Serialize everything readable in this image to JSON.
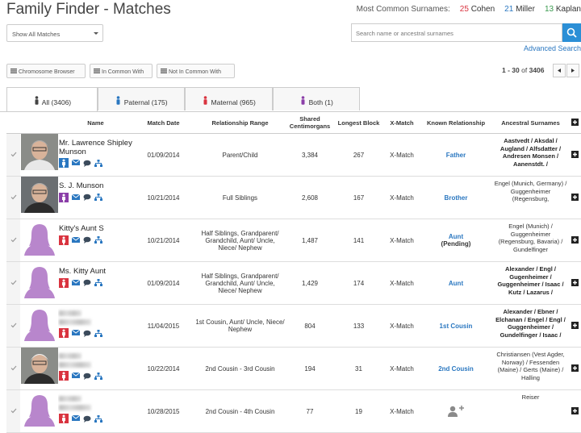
{
  "header": {
    "title": "Family Finder - Matches",
    "surnames_label": "Most Common Surnames:",
    "surnames": [
      {
        "count": "25",
        "name": "Cohen",
        "color": "#d9333f"
      },
      {
        "count": "21",
        "name": "Miller",
        "color": "#2a77c0"
      },
      {
        "count": "13",
        "name": "Kaplan",
        "color": "#3a9a4e"
      }
    ]
  },
  "filters": {
    "show_select": "Show All Matches",
    "search_placeholder": "Search name or ancestral surnames",
    "advanced_search": "Advanced Search"
  },
  "toolbar": {
    "buttons": [
      "Chromosome Browser",
      "In Common With",
      "Not In Common With"
    ],
    "range": "1 - 30",
    "of": "of",
    "total": "3406"
  },
  "tabs": [
    {
      "label": "All (3406)",
      "color": "#444444"
    },
    {
      "label": "Paternal (175)",
      "color": "#2a77c0"
    },
    {
      "label": "Maternal (965)",
      "color": "#d9333f"
    },
    {
      "label": "Both (1)",
      "color": "#8b3fa8"
    }
  ],
  "table": {
    "columns": [
      "Name",
      "Match Date",
      "Relationship Range",
      "Shared Centimorgans",
      "Longest Block",
      "X-Match",
      "Known Relationship",
      "Ancestral Surnames"
    ],
    "rows": [
      {
        "name": "Mr. Lawrence Shipley Munson",
        "avatar": "photo",
        "gender": "male",
        "date": "01/09/2014",
        "range": "Parent/Child",
        "shared": "3,384",
        "longest": "267",
        "xmatch": "X-Match",
        "known": "Father",
        "surnames": "Aastvedt / Aksdal / Augland / Alfsdatter / Andresen Monsen / Aanenstdt. /",
        "bold_surnames": true
      },
      {
        "name": "S. J. Munson",
        "avatar": "photo",
        "gender": "both",
        "date": "10/21/2014",
        "range": "Full Siblings",
        "shared": "2,608",
        "longest": "167",
        "xmatch": "X-Match",
        "known": "Brother",
        "surnames": "Engel (Munich, Germany) / Guggenheimer (Regensburg,",
        "bold_surnames": false
      },
      {
        "name": "Kitty's Aunt S",
        "avatar": "silhouette",
        "gender": "female",
        "date": "10/21/2014",
        "range": "Half Siblings, Grandparent/ Grandchild, Aunt/ Uncle, Niece/ Nephew",
        "shared": "1,487",
        "longest": "141",
        "xmatch": "X-Match",
        "known": "Aunt",
        "known_note": "(Pending)",
        "surnames": "Engel (Munich) / Guggenheimer (Regensburg, Bavaria) / Gundelfinger",
        "bold_surnames": false
      },
      {
        "name": "Ms. Kitty Aunt",
        "avatar": "silhouette",
        "gender": "female",
        "date": "01/09/2014",
        "range": "Half Siblings, Grandparent/ Grandchild, Aunt/ Uncle, Niece/ Nephew",
        "shared": "1,429",
        "longest": "174",
        "xmatch": "X-Match",
        "known": "Aunt",
        "surnames": "Alexander / Engl / Gugenheimer / Guggenheimer / Isaac / Kutz / Lazarus /",
        "bold_surnames": true
      },
      {
        "avatar": "silhouette",
        "gender": "female",
        "date": "11/04/2015",
        "range": "1st Cousin, Aunt/ Uncle, Niece/ Nephew",
        "shared": "804",
        "longest": "133",
        "xmatch": "X-Match",
        "known": "1st Cousin",
        "surnames": "Alexander / Ebner / Elchanan / Engel / Engl / Guggenheimer / Gundelfinger / Isaac /",
        "bold_surnames": true
      },
      {
        "avatar": "photo",
        "gender": "female",
        "date": "10/22/2014",
        "range": "2nd Cousin - 3rd Cousin",
        "shared": "194",
        "longest": "31",
        "xmatch": "X-Match",
        "known": "2nd Cousin",
        "surnames": "Christiansen (Vest Agder, Norway) / Fessenden (Maine) / Gerts (Maine) / Halling",
        "bold_surnames": false
      },
      {
        "avatar": "silhouette",
        "gender": "female",
        "date": "10/28/2015",
        "range": "2nd Cousin - 4th Cousin",
        "shared": "77",
        "longest": "19",
        "xmatch": "X-Match",
        "surnames": "Reiser",
        "bold_surnames": false
      }
    ]
  }
}
